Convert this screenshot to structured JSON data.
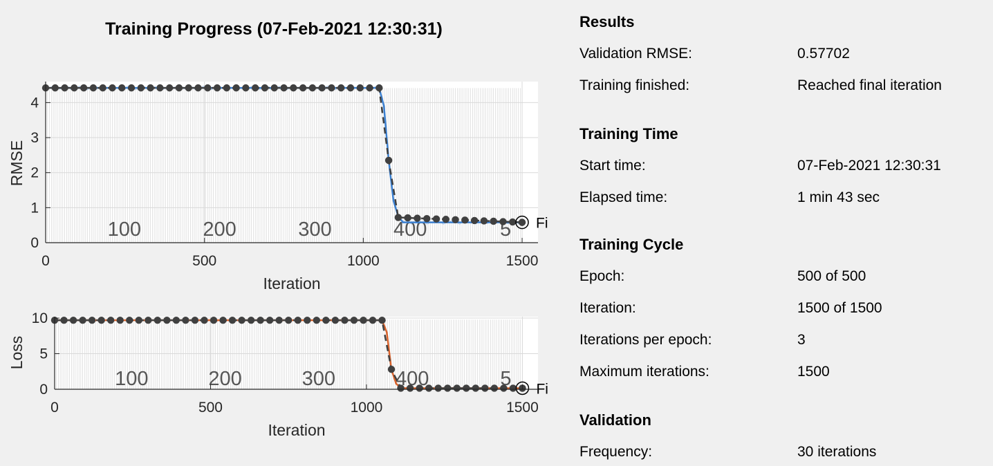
{
  "title": "Training Progress (07-Feb-2021 12:30:31)",
  "colors": {
    "rmse_line": "#3a7fd0",
    "loss_line": "#d9622b",
    "validation": "#404040",
    "grid": "#d9d9d9",
    "epoch_band": "#d0d0d0"
  },
  "chart_data": [
    {
      "type": "line",
      "xlabel": "Iteration",
      "ylabel": "RMSE",
      "xlim": [
        0,
        1550
      ],
      "ylim": [
        0,
        4.6
      ],
      "xticks": [
        0,
        500,
        1000,
        1500
      ],
      "yticks": [
        0,
        1,
        2,
        3,
        4
      ],
      "grid": true,
      "epoch_ticks": [
        {
          "iteration": 300,
          "label": "100"
        },
        {
          "iteration": 600,
          "label": "200"
        },
        {
          "iteration": 900,
          "label": "300"
        },
        {
          "iteration": 1200,
          "label": "400"
        },
        {
          "iteration": 1500,
          "label": "5"
        }
      ],
      "final_label": "Fi",
      "training_series": {
        "x": [
          0,
          1050,
          1065,
          1080,
          1095,
          1110,
          1125,
          1500
        ],
        "y": [
          4.42,
          4.42,
          3.9,
          2.35,
          1.2,
          0.75,
          0.58,
          0.58
        ]
      },
      "validation_series": {
        "x": [
          0,
          1050,
          1080,
          1110,
          1500
        ],
        "y": [
          4.42,
          4.42,
          2.35,
          0.72,
          0.58
        ]
      },
      "final_value": {
        "x": 1500,
        "y": 0.58
      }
    },
    {
      "type": "line",
      "xlabel": "Iteration",
      "ylabel": "Loss",
      "xlim": [
        0,
        1550
      ],
      "ylim": [
        0,
        10.2
      ],
      "xticks": [
        0,
        500,
        1000,
        1500
      ],
      "yticks": [
        0,
        5,
        10
      ],
      "grid": true,
      "epoch_ticks": [
        {
          "iteration": 300,
          "label": "100"
        },
        {
          "iteration": 600,
          "label": "200"
        },
        {
          "iteration": 900,
          "label": "300"
        },
        {
          "iteration": 1200,
          "label": "400"
        },
        {
          "iteration": 1500,
          "label": "5"
        }
      ],
      "final_label": "Fi",
      "training_series": {
        "x": [
          0,
          1050,
          1065,
          1080,
          1095,
          1110,
          1125,
          1500
        ],
        "y": [
          9.7,
          9.7,
          8.0,
          2.8,
          0.8,
          0.15,
          0.15,
          0.15
        ]
      },
      "validation_series": {
        "x": [
          0,
          1050,
          1080,
          1110,
          1500
        ],
        "y": [
          9.7,
          9.7,
          2.8,
          0.15,
          0.15
        ]
      },
      "final_value": {
        "x": 1500,
        "y": 0.15
      }
    }
  ],
  "info": {
    "results": {
      "heading": "Results",
      "rows": [
        {
          "label": "Validation RMSE:",
          "value": "0.57702"
        },
        {
          "label": "Training finished:",
          "value": "Reached final iteration"
        }
      ]
    },
    "training_time": {
      "heading": "Training Time",
      "rows": [
        {
          "label": "Start time:",
          "value": "07-Feb-2021 12:30:31"
        },
        {
          "label": "Elapsed time:",
          "value": "1 min 43 sec"
        }
      ]
    },
    "training_cycle": {
      "heading": "Training Cycle",
      "rows": [
        {
          "label": "Epoch:",
          "value": "500 of 500"
        },
        {
          "label": "Iteration:",
          "value": "1500 of 1500"
        },
        {
          "label": "Iterations per epoch:",
          "value": "3"
        },
        {
          "label": "Maximum iterations:",
          "value": "1500"
        }
      ]
    },
    "validation": {
      "heading": "Validation",
      "rows": [
        {
          "label": "Frequency:",
          "value": "30 iterations"
        }
      ]
    }
  }
}
